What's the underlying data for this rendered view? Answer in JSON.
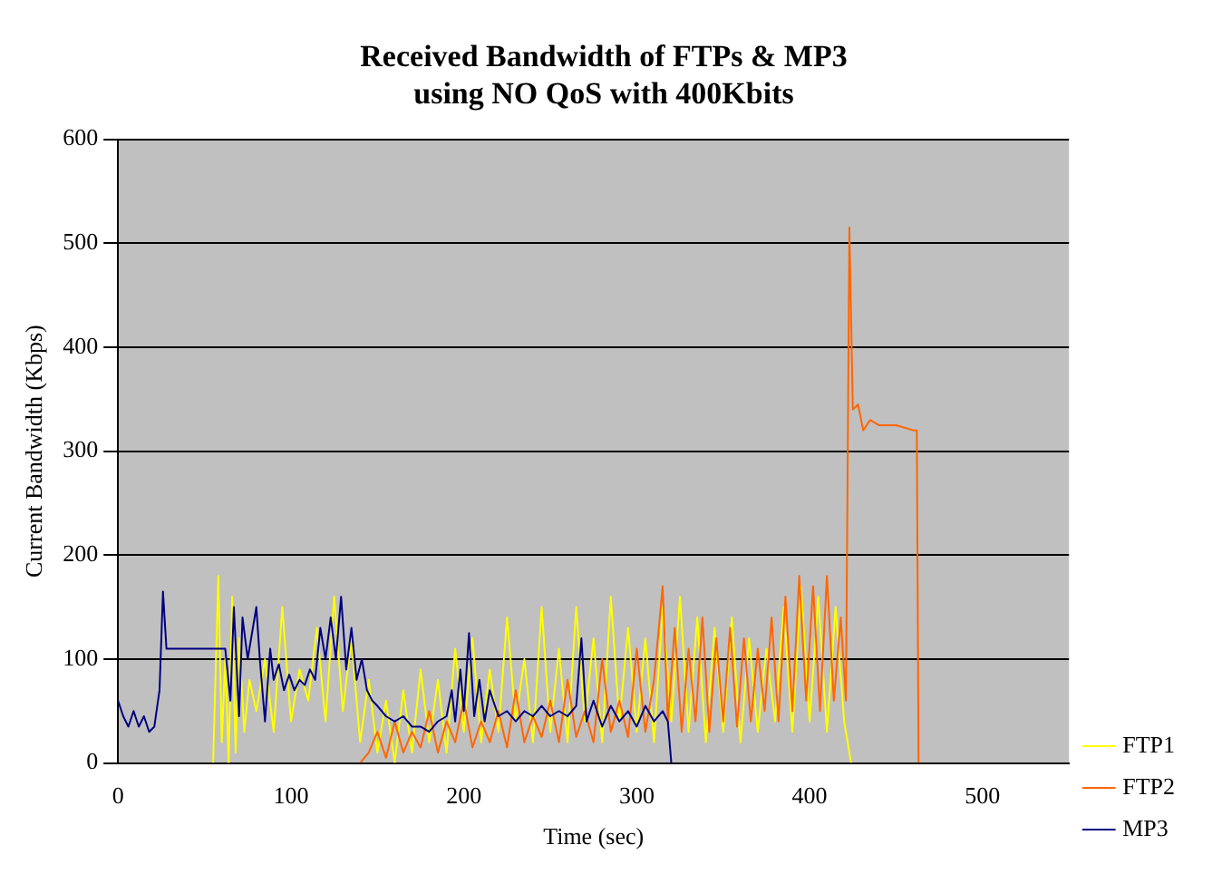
{
  "chart_data": {
    "type": "line",
    "title": [
      "Received Bandwidth of FTPs & MP3",
      "using NO QoS with 400Kbits"
    ],
    "xlabel": "Time (sec)",
    "ylabel": "Current Bandwidth (Kbps)",
    "xlim": [
      0,
      550
    ],
    "xticks": [
      0,
      100,
      200,
      300,
      400,
      500
    ],
    "ylim": [
      0,
      600
    ],
    "yticks": [
      0,
      100,
      200,
      300,
      400,
      500,
      600
    ],
    "grid": "y",
    "legend": "bottom right",
    "series": [
      {
        "name": "FTP1",
        "color": "#ffff00",
        "x": [
          55,
          58,
          60,
          62,
          64,
          66,
          68,
          70,
          73,
          76,
          80,
          85,
          90,
          95,
          100,
          105,
          110,
          115,
          120,
          125,
          130,
          135,
          140,
          145,
          150,
          155,
          160,
          165,
          170,
          175,
          180,
          185,
          190,
          195,
          200,
          205,
          210,
          215,
          220,
          225,
          230,
          235,
          240,
          245,
          250,
          255,
          260,
          265,
          270,
          275,
          280,
          285,
          290,
          295,
          300,
          305,
          310,
          315,
          320,
          325,
          330,
          335,
          340,
          345,
          350,
          355,
          360,
          365,
          370,
          375,
          380,
          385,
          390,
          395,
          400,
          405,
          410,
          415,
          420,
          424
        ],
        "values": [
          0,
          180,
          20,
          100,
          0,
          160,
          10,
          120,
          30,
          80,
          50,
          100,
          30,
          150,
          40,
          90,
          60,
          130,
          40,
          160,
          50,
          120,
          20,
          80,
          10,
          60,
          0,
          70,
          10,
          90,
          20,
          80,
          10,
          110,
          30,
          120,
          20,
          90,
          30,
          140,
          40,
          100,
          20,
          150,
          30,
          110,
          20,
          150,
          40,
          120,
          20,
          160,
          40,
          130,
          30,
          120,
          20,
          150,
          40,
          160,
          30,
          140,
          20,
          130,
          30,
          140,
          20,
          120,
          30,
          110,
          40,
          150,
          30,
          170,
          40,
          160,
          30,
          150,
          40,
          0
        ]
      },
      {
        "name": "FTP2",
        "color": "#ff6600",
        "x": [
          140,
          145,
          150,
          155,
          160,
          165,
          170,
          175,
          180,
          185,
          190,
          195,
          200,
          205,
          210,
          215,
          220,
          225,
          230,
          235,
          240,
          245,
          250,
          255,
          260,
          265,
          270,
          275,
          280,
          285,
          290,
          295,
          300,
          305,
          310,
          315,
          318,
          322,
          326,
          330,
          334,
          338,
          342,
          346,
          350,
          354,
          358,
          362,
          366,
          370,
          374,
          378,
          382,
          386,
          390,
          394,
          398,
          402,
          406,
          410,
          414,
          418,
          421,
          423,
          425,
          428,
          431,
          435,
          440,
          450,
          460,
          462,
          463
        ],
        "values": [
          0,
          10,
          30,
          5,
          40,
          10,
          30,
          15,
          50,
          10,
          40,
          20,
          60,
          15,
          40,
          20,
          50,
          15,
          70,
          20,
          45,
          25,
          60,
          20,
          80,
          25,
          50,
          20,
          100,
          30,
          60,
          25,
          110,
          30,
          80,
          170,
          40,
          130,
          30,
          110,
          40,
          140,
          30,
          120,
          40,
          130,
          35,
          120,
          40,
          110,
          50,
          140,
          40,
          160,
          50,
          180,
          60,
          170,
          50,
          180,
          60,
          140,
          60,
          515,
          340,
          345,
          320,
          330,
          325,
          325,
          320,
          320,
          0
        ]
      },
      {
        "name": "MP3",
        "color": "#000080",
        "x": [
          0,
          3,
          6,
          9,
          12,
          15,
          18,
          21,
          24,
          26,
          28,
          40,
          55,
          62,
          65,
          67,
          70,
          72,
          75,
          78,
          80,
          82,
          85,
          88,
          90,
          93,
          96,
          99,
          102,
          105,
          108,
          111,
          114,
          117,
          120,
          123,
          126,
          129,
          132,
          135,
          138,
          141,
          144,
          147,
          150,
          155,
          160,
          165,
          170,
          175,
          180,
          185,
          190,
          193,
          195,
          198,
          200,
          203,
          206,
          209,
          212,
          215,
          220,
          225,
          230,
          235,
          240,
          245,
          250,
          255,
          260,
          265,
          268,
          271,
          275,
          280,
          285,
          290,
          295,
          300,
          305,
          310,
          315,
          318,
          320
        ],
        "values": [
          60,
          45,
          35,
          50,
          35,
          45,
          30,
          35,
          70,
          165,
          110,
          110,
          110,
          110,
          60,
          150,
          45,
          140,
          100,
          130,
          150,
          100,
          40,
          110,
          80,
          95,
          70,
          85,
          70,
          80,
          75,
          90,
          80,
          130,
          100,
          140,
          100,
          160,
          90,
          130,
          80,
          100,
          70,
          60,
          55,
          45,
          40,
          45,
          35,
          35,
          30,
          40,
          45,
          70,
          40,
          90,
          50,
          125,
          45,
          80,
          40,
          70,
          45,
          50,
          40,
          50,
          45,
          55,
          45,
          50,
          45,
          55,
          120,
          40,
          60,
          35,
          55,
          40,
          50,
          35,
          55,
          40,
          50,
          40,
          0
        ]
      }
    ]
  }
}
